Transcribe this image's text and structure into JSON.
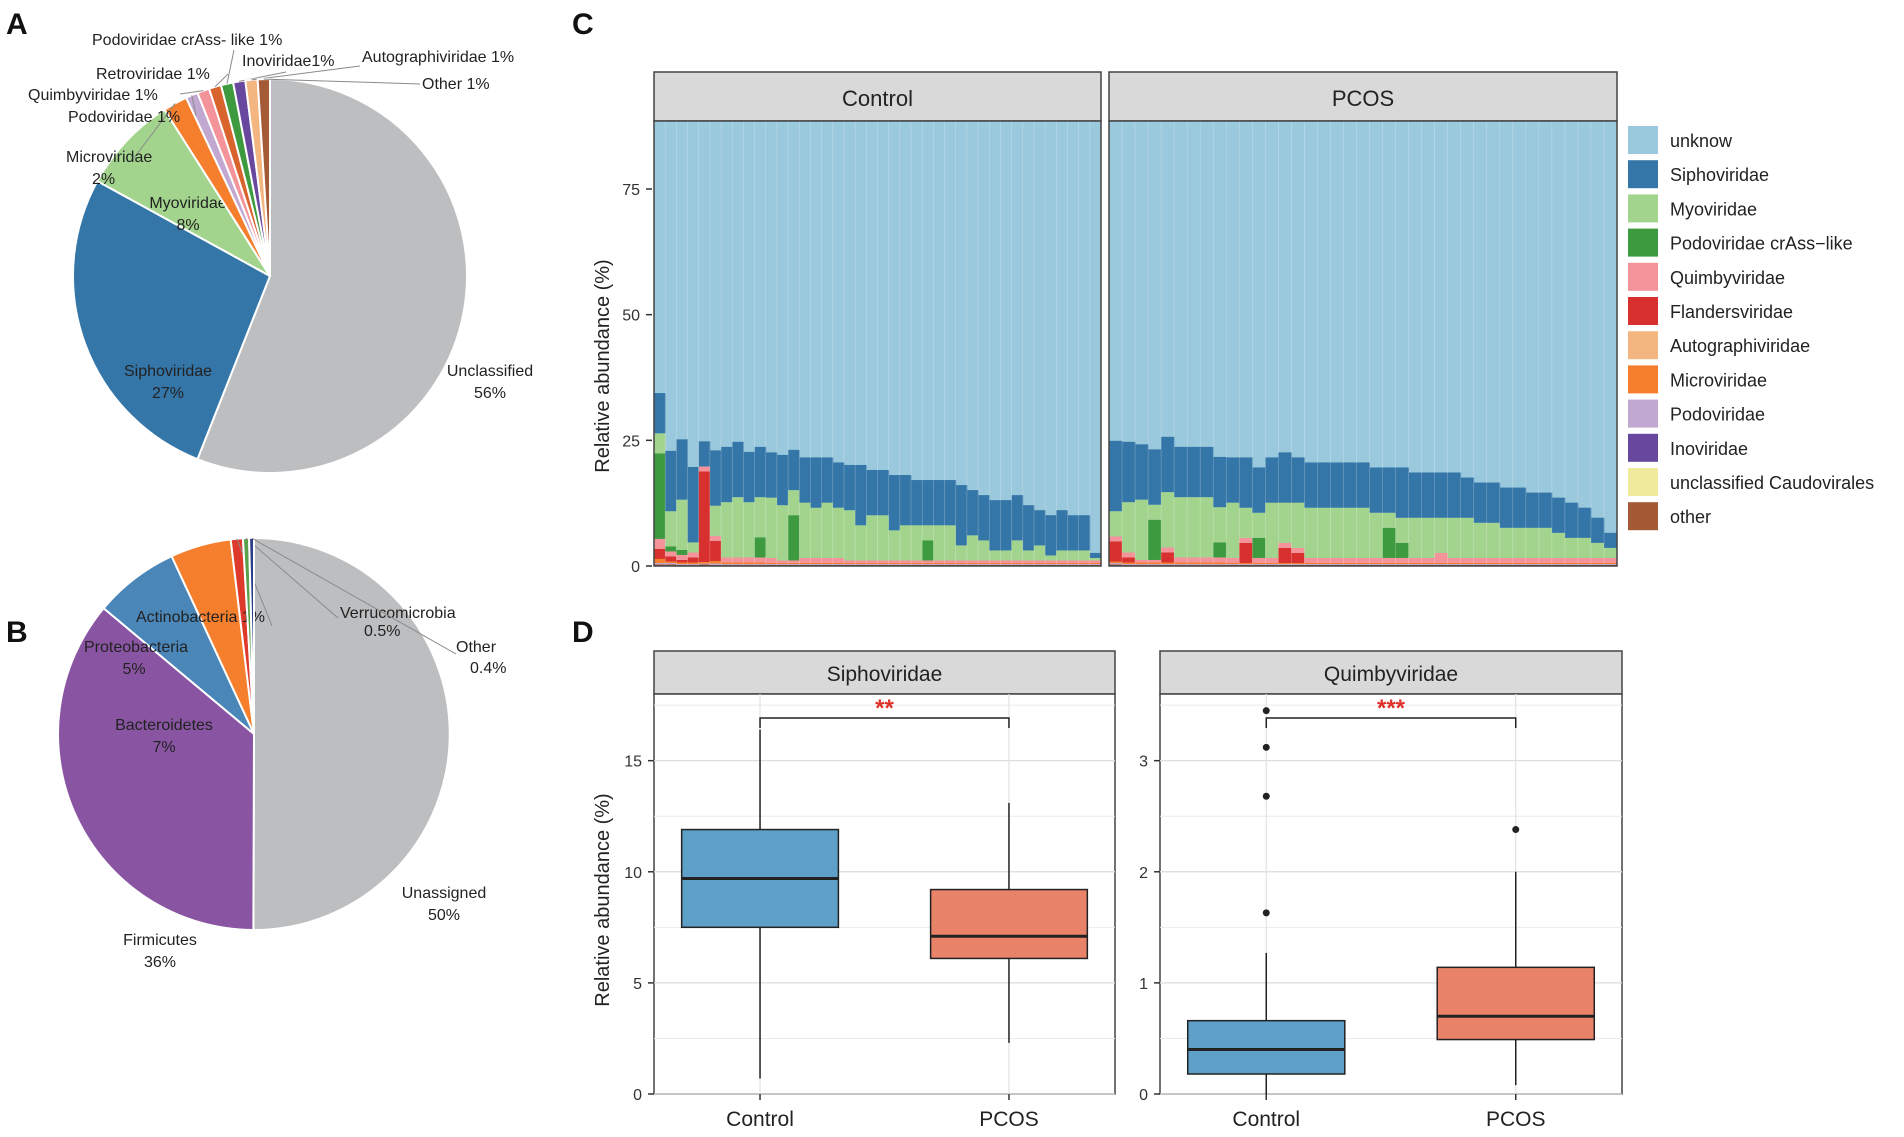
{
  "figure": {
    "panel_letters": [
      "A",
      "B",
      "C",
      "D"
    ]
  },
  "chart_data": [
    {
      "id": "A",
      "type": "pie",
      "title": "",
      "slices": [
        {
          "name": "Unclassified",
          "value": 56,
          "label": "Unclassified",
          "pct": "56%",
          "color": "#bdbec0"
        },
        {
          "name": "Siphoviridae",
          "value": 27,
          "label": "Siphoviridae",
          "pct": "27%",
          "color": "#3476a8"
        },
        {
          "name": "Myoviridae",
          "value": 8,
          "label": "Myoviridae",
          "pct": "8%",
          "color": "#a3d48e"
        },
        {
          "name": "Microviridae",
          "value": 2,
          "label": "Microviridae",
          "pct": "2%",
          "color": "#f57f2c"
        },
        {
          "name": "Podoviridae",
          "value": 1,
          "label": "Podoviridae 1%",
          "pct": "",
          "color": "#c0a8d0"
        },
        {
          "name": "Quimbyviridae",
          "value": 1,
          "label": "Quimbyviridae 1%",
          "pct": "",
          "color": "#f4949a"
        },
        {
          "name": "Retroviridae",
          "value": 1,
          "label": "Retroviridae 1%",
          "pct": "",
          "color": "#d9632c"
        },
        {
          "name": "Podoviridae crAss- like",
          "value": 1,
          "label": "Podoviridae crAss- like 1%",
          "pct": "",
          "color": "#3e9a3e"
        },
        {
          "name": "Inoviridae",
          "value": 1,
          "label": "Inoviridae1%",
          "pct": "",
          "color": "#67489e"
        },
        {
          "name": "Autographiviridae",
          "value": 1,
          "label": "Autographiviridae 1%",
          "pct": "",
          "color": "#f4b681"
        },
        {
          "name": "Other",
          "value": 1,
          "label": "Other 1%",
          "pct": "",
          "color": "#a35a35"
        }
      ]
    },
    {
      "id": "B",
      "type": "pie",
      "title": "",
      "slices": [
        {
          "name": "Unassigned",
          "value": 50,
          "label": "Unassigned",
          "pct": "50%",
          "color": "#bdbec0"
        },
        {
          "name": "Firmicutes",
          "value": 36,
          "label": "Firmicutes",
          "pct": "36%",
          "color": "#8955a3"
        },
        {
          "name": "Bacteroidetes",
          "value": 7,
          "label": "Bacteroidetes",
          "pct": "7%",
          "color": "#4a86b8"
        },
        {
          "name": "Proteobacteria",
          "value": 5,
          "label": "Proteobacteria",
          "pct": "5%",
          "color": "#f57f2c"
        },
        {
          "name": "Actinobacteria",
          "value": 1,
          "label": "Actinobacteria 1%",
          "pct": "",
          "color": "#de3a2c"
        },
        {
          "name": "Verrucomicrobia",
          "value": 0.5,
          "label": "Verrucomicrobia",
          "pct": "0.5%",
          "color": "#5aa04a"
        },
        {
          "name": "Other",
          "value": 0.4,
          "label": "Other",
          "pct": "0.4%",
          "color": "#2c3f8a"
        }
      ]
    },
    {
      "id": "C",
      "type": "bar",
      "stacked": true,
      "ylabel": "Relative abundance (%)",
      "yticks": [
        0,
        25,
        50,
        75
      ],
      "ylim": [
        0,
        88
      ],
      "facets": [
        "Control",
        "PCOS"
      ],
      "legend": [
        {
          "name": "unknow",
          "color": "#9ac8dc"
        },
        {
          "name": "Siphoviridae",
          "color": "#3476a8"
        },
        {
          "name": "Myoviridae",
          "color": "#a3d48e"
        },
        {
          "name": "Podoviridae crAss−like",
          "color": "#3e9a3e"
        },
        {
          "name": "Quimbyviridae",
          "color": "#f4949a"
        },
        {
          "name": "Flandersviridae",
          "color": "#d8302e"
        },
        {
          "name": "Autographiviridae",
          "color": "#f4b681"
        },
        {
          "name": "Microviridae",
          "color": "#f57f2c"
        },
        {
          "name": "Podoviridae",
          "color": "#c0a8d0"
        },
        {
          "name": "Inoviridae",
          "color": "#67489e"
        },
        {
          "name": "unclassified Caudovirales",
          "color": "#f0ea9c"
        },
        {
          "name": "other",
          "color": "#a35a35"
        }
      ],
      "series_columns": [
        "Siphoviridae",
        "Myoviridae",
        "Podoviridae crAss-like",
        "Quimbyviridae",
        "Flandersviridae",
        "Microviridae",
        "Podoviridae",
        "Inoviridae",
        "other"
      ],
      "samples": {
        "Control": [
          [
            8,
            4,
            17,
            2,
            2,
            0.8,
            0.3,
            0,
            0.3
          ],
          [
            12,
            7,
            1,
            1,
            1,
            0.3,
            0.3,
            0,
            0.3
          ],
          [
            12,
            10,
            1,
            1,
            0.5,
            0.3,
            0.2,
            0,
            0.2
          ],
          [
            15,
            2,
            0,
            1,
            1,
            0.3,
            0.2,
            0,
            0.2
          ],
          [
            5,
            0,
            0,
            1,
            18,
            0.3,
            0.2,
            0,
            0.3
          ],
          [
            11,
            6,
            0,
            1,
            4,
            0.5,
            0.3,
            0,
            0.2
          ],
          [
            11,
            11,
            0,
            1,
            0,
            0.3,
            0.2,
            0,
            0.2
          ],
          [
            11,
            12,
            0,
            1,
            0,
            0.3,
            0.2,
            0,
            0.2
          ],
          [
            10,
            11,
            0,
            1,
            0,
            0.3,
            0.2,
            0,
            0.2
          ],
          [
            10,
            8,
            4,
            1,
            0,
            0.3,
            0.2,
            0,
            0.2
          ],
          [
            9,
            12,
            0,
            1,
            0,
            0.2,
            0.2,
            0,
            0.2
          ],
          [
            10,
            11,
            0,
            0.5,
            0,
            0.2,
            0.2,
            0,
            0.2
          ],
          [
            8,
            5,
            9,
            0.5,
            0,
            0.2,
            0.2,
            0,
            0.2
          ],
          [
            9,
            11,
            0,
            1,
            0,
            0.2,
            0.2,
            0,
            0.2
          ],
          [
            10,
            10,
            0,
            1,
            0,
            0.2,
            0.2,
            0,
            0.2
          ],
          [
            9,
            11,
            0,
            1,
            0,
            0.2,
            0.2,
            0,
            0.2
          ],
          [
            9,
            10,
            0,
            1,
            0,
            0.2,
            0.2,
            0,
            0.2
          ],
          [
            9,
            10,
            0,
            0.5,
            0,
            0.2,
            0.2,
            0,
            0.2
          ],
          [
            12,
            7,
            0,
            0.5,
            0,
            0.2,
            0.2,
            0,
            0.2
          ],
          [
            9,
            9,
            0,
            0.5,
            0,
            0.2,
            0.2,
            0,
            0.2
          ],
          [
            9,
            9,
            0,
            0.5,
            0,
            0.2,
            0.2,
            0,
            0.2
          ],
          [
            11,
            6,
            0,
            0.5,
            0,
            0.2,
            0.2,
            0,
            0.2
          ],
          [
            10,
            7,
            0,
            0.5,
            0,
            0.2,
            0.2,
            0,
            0.2
          ],
          [
            9,
            7,
            0,
            0.5,
            0,
            0.2,
            0.2,
            0,
            0.2
          ],
          [
            9,
            3,
            4,
            0.5,
            0,
            0.2,
            0.2,
            0,
            0.2
          ],
          [
            9,
            7,
            0,
            0.5,
            0,
            0.2,
            0.2,
            0,
            0.2
          ],
          [
            9,
            7,
            0,
            0.5,
            0,
            0.2,
            0.2,
            0,
            0.2
          ],
          [
            12,
            3,
            0,
            0.5,
            0,
            0.2,
            0.2,
            0,
            0.2
          ],
          [
            9,
            5,
            0,
            0.5,
            0,
            0.2,
            0.2,
            0,
            0.2
          ],
          [
            9,
            4,
            0,
            0.5,
            0,
            0.2,
            0.2,
            0,
            0.2
          ],
          [
            10,
            2,
            0,
            0.5,
            0,
            0.2,
            0.2,
            0,
            0.2
          ],
          [
            10,
            2,
            0,
            0.5,
            0,
            0.2,
            0.2,
            0,
            0.2
          ],
          [
            9,
            4,
            0,
            0.5,
            0,
            0.2,
            0.2,
            0,
            0.2
          ],
          [
            9,
            2,
            0,
            0.5,
            0,
            0.2,
            0.2,
            0,
            0.2
          ],
          [
            7,
            3,
            0,
            0.5,
            0,
            0.2,
            0.2,
            0,
            0.2
          ],
          [
            8,
            1,
            0,
            0.5,
            0,
            0.2,
            0.2,
            0,
            0.2
          ],
          [
            8,
            2,
            0,
            0.5,
            0,
            0.2,
            0.2,
            0,
            0.2
          ],
          [
            7,
            2,
            0,
            0.5,
            0,
            0.2,
            0.2,
            0,
            0.2
          ],
          [
            7,
            2,
            0,
            0.5,
            0,
            0.2,
            0.2,
            0,
            0.2
          ],
          [
            1,
            0.5,
            0,
            0.5,
            0,
            0.2,
            0.2,
            0,
            0.2
          ]
        ],
        "PCOS": [
          [
            14,
            5,
            0,
            1,
            4,
            0.3,
            0.3,
            0,
            0.3
          ],
          [
            12,
            10,
            0,
            1,
            1,
            0.3,
            0.2,
            0,
            0.2
          ],
          [
            11,
            12,
            0,
            0.5,
            0,
            0.3,
            0.2,
            0,
            0.2
          ],
          [
            11,
            3,
            8,
            0.5,
            0,
            0.3,
            0.2,
            0,
            0.2
          ],
          [
            11,
            11,
            0,
            1,
            2,
            0.3,
            0.2,
            0,
            0.2
          ],
          [
            10,
            12,
            0,
            1,
            0,
            0.3,
            0.2,
            0,
            0.2
          ],
          [
            10,
            12,
            0,
            1,
            0,
            0.3,
            0.2,
            0,
            0.2
          ],
          [
            10,
            12,
            0,
            1,
            0,
            0.3,
            0.2,
            0,
            0.2
          ],
          [
            10,
            7,
            3,
            1,
            0,
            0.3,
            0.2,
            0,
            0.2
          ],
          [
            9,
            11,
            0,
            1,
            0,
            0.2,
            0.2,
            0,
            0.2
          ],
          [
            10,
            6,
            0,
            1,
            4,
            0.2,
            0.2,
            0,
            0.2
          ],
          [
            9,
            5,
            4,
            1,
            0,
            0.2,
            0.2,
            0,
            0.2
          ],
          [
            9,
            11,
            0,
            1,
            0,
            0.2,
            0.2,
            0,
            0.2
          ],
          [
            10,
            8,
            0,
            1,
            3,
            0.2,
            0.2,
            0,
            0.2
          ],
          [
            9,
            9,
            0,
            1,
            2,
            0.2,
            0.2,
            0,
            0.2
          ],
          [
            9,
            10,
            0,
            1,
            0,
            0.2,
            0.2,
            0,
            0.2
          ],
          [
            9,
            10,
            0,
            1,
            0,
            0.2,
            0.2,
            0,
            0.2
          ],
          [
            9,
            10,
            0,
            1,
            0,
            0.2,
            0.2,
            0,
            0.2
          ],
          [
            9,
            10,
            0,
            1,
            0,
            0.2,
            0.2,
            0,
            0.2
          ],
          [
            9,
            10,
            0,
            1,
            0,
            0.2,
            0.2,
            0,
            0.2
          ],
          [
            9,
            9,
            0,
            1,
            0,
            0.2,
            0.2,
            0,
            0.2
          ],
          [
            9,
            3,
            6,
            1,
            0,
            0.2,
            0.2,
            0,
            0.2
          ],
          [
            10,
            5,
            3,
            1,
            0,
            0.2,
            0.2,
            0,
            0.2
          ],
          [
            9,
            8,
            0,
            1,
            0,
            0.2,
            0.2,
            0,
            0.2
          ],
          [
            9,
            8,
            0,
            1,
            0,
            0.2,
            0.2,
            0,
            0.2
          ],
          [
            9,
            7,
            0,
            2,
            0,
            0.2,
            0.2,
            0,
            0.2
          ],
          [
            9,
            8,
            0,
            1,
            0,
            0.2,
            0.2,
            0,
            0.2
          ],
          [
            8,
            8,
            0,
            1,
            0,
            0.2,
            0.2,
            0,
            0.2
          ],
          [
            8,
            7,
            0,
            1,
            0,
            0.2,
            0.2,
            0,
            0.2
          ],
          [
            8,
            7,
            0,
            1,
            0,
            0.2,
            0.2,
            0,
            0.2
          ],
          [
            8,
            6,
            0,
            1,
            0,
            0.2,
            0.2,
            0,
            0.2
          ],
          [
            8,
            6,
            0,
            1,
            0,
            0.2,
            0.2,
            0,
            0.2
          ],
          [
            7,
            6,
            0,
            1,
            0,
            0.2,
            0.2,
            0,
            0.2
          ],
          [
            7,
            6,
            0,
            1,
            0,
            0.2,
            0.2,
            0,
            0.2
          ],
          [
            7,
            5,
            0,
            1,
            0,
            0.2,
            0.2,
            0,
            0.2
          ],
          [
            7,
            4,
            0,
            1,
            0,
            0.2,
            0.2,
            0,
            0.2
          ],
          [
            6,
            4,
            0,
            1,
            0,
            0.2,
            0.2,
            0,
            0.2
          ],
          [
            5,
            3,
            0,
            1,
            0,
            0.2,
            0.2,
            0,
            0.2
          ],
          [
            3,
            2,
            0,
            1,
            0,
            0.2,
            0.2,
            0,
            0.2
          ]
        ]
      }
    },
    {
      "id": "D",
      "type": "box",
      "ylabel": "Relative abundance (%)",
      "categories": [
        "Control",
        "PCOS"
      ],
      "colors": {
        "Control": "#5ea0c8",
        "PCOS": "#e8836a"
      },
      "panels": [
        {
          "title": "Siphoviridae",
          "ylim": [
            0,
            18
          ],
          "yticks": [
            0,
            5,
            10,
            15
          ],
          "significance": "**",
          "boxes": [
            {
              "group": "Control",
              "min": 0.7,
              "q1": 7.5,
              "median": 9.7,
              "q3": 11.9,
              "max": 16.4,
              "outliers": []
            },
            {
              "group": "PCOS",
              "min": 2.3,
              "q1": 6.1,
              "median": 7.1,
              "q3": 9.2,
              "max": 13.1,
              "outliers": []
            }
          ]
        },
        {
          "title": "Quimbyviridae",
          "ylim": [
            0,
            3.6
          ],
          "yticks": [
            0,
            1,
            2,
            3
          ],
          "significance": "***",
          "boxes": [
            {
              "group": "Control",
              "min": 0.0,
              "q1": 0.18,
              "median": 0.4,
              "q3": 0.66,
              "max": 1.27,
              "outliers": [
                1.63,
                2.68,
                3.12,
                3.45
              ]
            },
            {
              "group": "PCOS",
              "min": 0.08,
              "q1": 0.49,
              "median": 0.7,
              "q3": 1.14,
              "max": 2.0,
              "outliers": [
                2.38
              ]
            }
          ]
        }
      ]
    }
  ]
}
